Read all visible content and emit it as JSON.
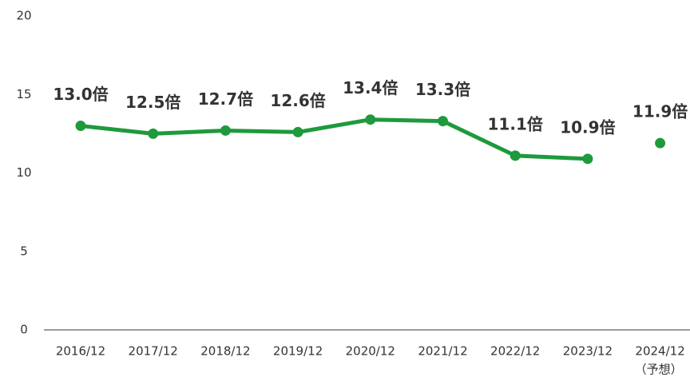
{
  "chart_data": {
    "type": "line",
    "categories": [
      "2016/12",
      "2017/12",
      "2018/12",
      "2019/12",
      "2020/12",
      "2021/12",
      "2022/12",
      "2023/12",
      "2024/12"
    ],
    "category_note": "（予想）",
    "series": [
      {
        "color": "#1e9a3c",
        "values": [
          13.0,
          12.5,
          12.7,
          12.6,
          13.4,
          13.3,
          11.1,
          10.9,
          null
        ],
        "value_labels": [
          "13.0倍",
          "12.5倍",
          "12.7倍",
          "12.6倍",
          "13.4倍",
          "13.3倍",
          "11.1倍",
          "10.9倍",
          null
        ]
      },
      {
        "color": "#1e9a3c",
        "values": [
          null,
          null,
          null,
          null,
          null,
          null,
          null,
          null,
          11.9
        ],
        "value_labels": [
          null,
          null,
          null,
          null,
          null,
          null,
          null,
          null,
          "11.9倍"
        ]
      }
    ],
    "ylim": [
      0,
      20
    ],
    "yticks": [
      0,
      5,
      10,
      15,
      20
    ],
    "grid": false
  }
}
